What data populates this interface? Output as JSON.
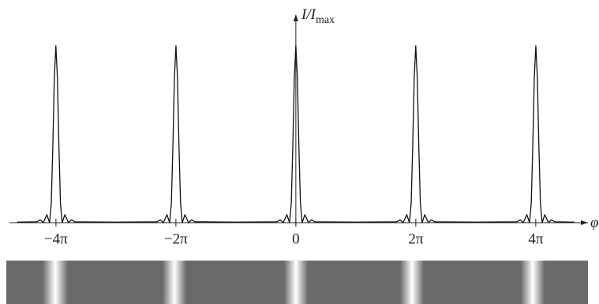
{
  "chart_data": {
    "type": "line",
    "y_label": "I/I",
    "y_label_sub": "max",
    "x_label": "φ",
    "xlim": [
      -15,
      15.3
    ],
    "ylim": [
      0,
      1
    ],
    "xticks": [
      {
        "value": -12.566,
        "label": "−4π"
      },
      {
        "value": -6.283,
        "label": "−2π"
      },
      0,
      {
        "value": 6.283,
        "label": "2π"
      },
      {
        "value": 12.566,
        "label": "4π"
      }
    ],
    "series": [
      {
        "color": "#111",
        "x": [
          -14.6,
          -13.57,
          -13.39,
          -13.23,
          -13.04,
          -12.9,
          -12.81,
          -12.73,
          -12.65,
          -12.57,
          -12.49,
          -12.41,
          -12.33,
          -12.24,
          -12.1,
          -11.91,
          -11.75,
          -11.57,
          -9.42,
          -7.28,
          -7.1,
          -6.94,
          -6.75,
          -6.61,
          -6.52,
          -6.44,
          -6.36,
          -6.28,
          -6.2,
          -6.12,
          -6.04,
          -5.95,
          -5.81,
          -5.62,
          -5.46,
          -5.28,
          -3.14,
          -1,
          -0.82,
          -0.66,
          -0.47,
          -0.33,
          -0.24,
          -0.16,
          -0.08,
          0,
          0.08,
          0.16,
          0.24,
          0.33,
          0.47,
          0.66,
          0.82,
          1,
          3.14,
          5.28,
          5.46,
          5.62,
          5.81,
          5.95,
          6.04,
          6.12,
          6.2,
          6.28,
          6.36,
          6.44,
          6.52,
          6.61,
          6.75,
          6.94,
          7.1,
          7.28,
          9.42,
          11.57,
          11.75,
          11.91,
          12.1,
          12.24,
          12.33,
          12.41,
          12.49,
          12.57,
          12.65,
          12.73,
          12.81,
          12.9,
          13.04,
          13.23,
          13.39,
          13.57,
          14.6
        ],
        "values": [
          0.003,
          0.005,
          0.016,
          0,
          0.045,
          0,
          0.11,
          0.43,
          0.82,
          1,
          0.82,
          0.43,
          0.11,
          0,
          0.045,
          0,
          0.016,
          0.005,
          0.003,
          0.005,
          0.016,
          0,
          0.045,
          0,
          0.11,
          0.43,
          0.82,
          1,
          0.82,
          0.43,
          0.11,
          0,
          0.045,
          0,
          0.016,
          0.005,
          0.003,
          0.005,
          0.016,
          0,
          0.045,
          0,
          0.11,
          0.43,
          0.82,
          1,
          0.82,
          0.43,
          0.11,
          0,
          0.045,
          0,
          0.016,
          0.005,
          0.003,
          0.005,
          0.016,
          0,
          0.045,
          0,
          0.11,
          0.43,
          0.82,
          1,
          0.82,
          0.43,
          0.11,
          0,
          0.045,
          0,
          0.016,
          0.005,
          0.003,
          0.005,
          0.016,
          0,
          0.045,
          0,
          0.11,
          0.43,
          0.82,
          1,
          0.82,
          0.43,
          0.11,
          0,
          0.045,
          0,
          0.016,
          0.005,
          0.003
        ]
      }
    ]
  }
}
